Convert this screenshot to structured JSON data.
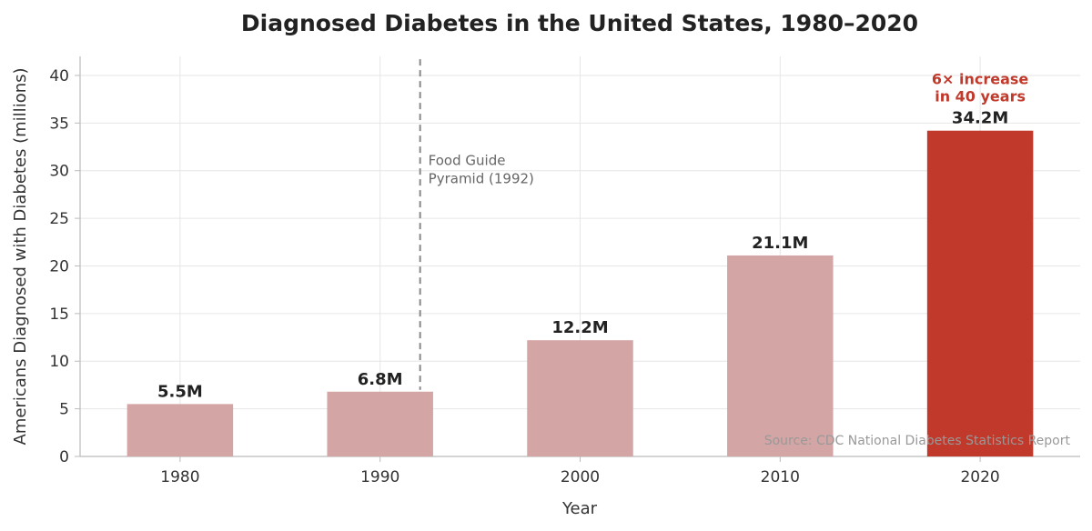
{
  "chart_data": {
    "type": "bar",
    "title": "Diagnosed Diabetes in the United States, 1980–2020",
    "xlabel": "Year",
    "ylabel": "Americans Diagnosed with Diabetes (millions)",
    "categories": [
      "1980",
      "1990",
      "2000",
      "2010",
      "2020"
    ],
    "values": [
      5.5,
      6.8,
      12.2,
      21.1,
      34.2
    ],
    "data_labels": [
      "5.5M",
      "6.8M",
      "12.2M",
      "21.1M",
      "34.2M"
    ],
    "ylim": [
      0,
      42
    ],
    "yticks": [
      0,
      5,
      10,
      15,
      20,
      25,
      30,
      35,
      40
    ],
    "grid": true,
    "colors": {
      "bar": "#d4a5a5",
      "highlight_bar": "#c0392b",
      "grid": "#e6e6e6",
      "axis": "#bbbbbb",
      "annotation_line": "#888888",
      "highlight_text": "#c0392b"
    },
    "highlight_index": 4,
    "annotations": {
      "vline": {
        "x": 1992,
        "label_line1": "Food Guide",
        "label_line2": "Pyramid (1992)"
      },
      "highlight": {
        "line1": "6× increase",
        "line2": "in 40 years"
      }
    },
    "source": "Source: CDC National Diabetes Statistics Report"
  }
}
